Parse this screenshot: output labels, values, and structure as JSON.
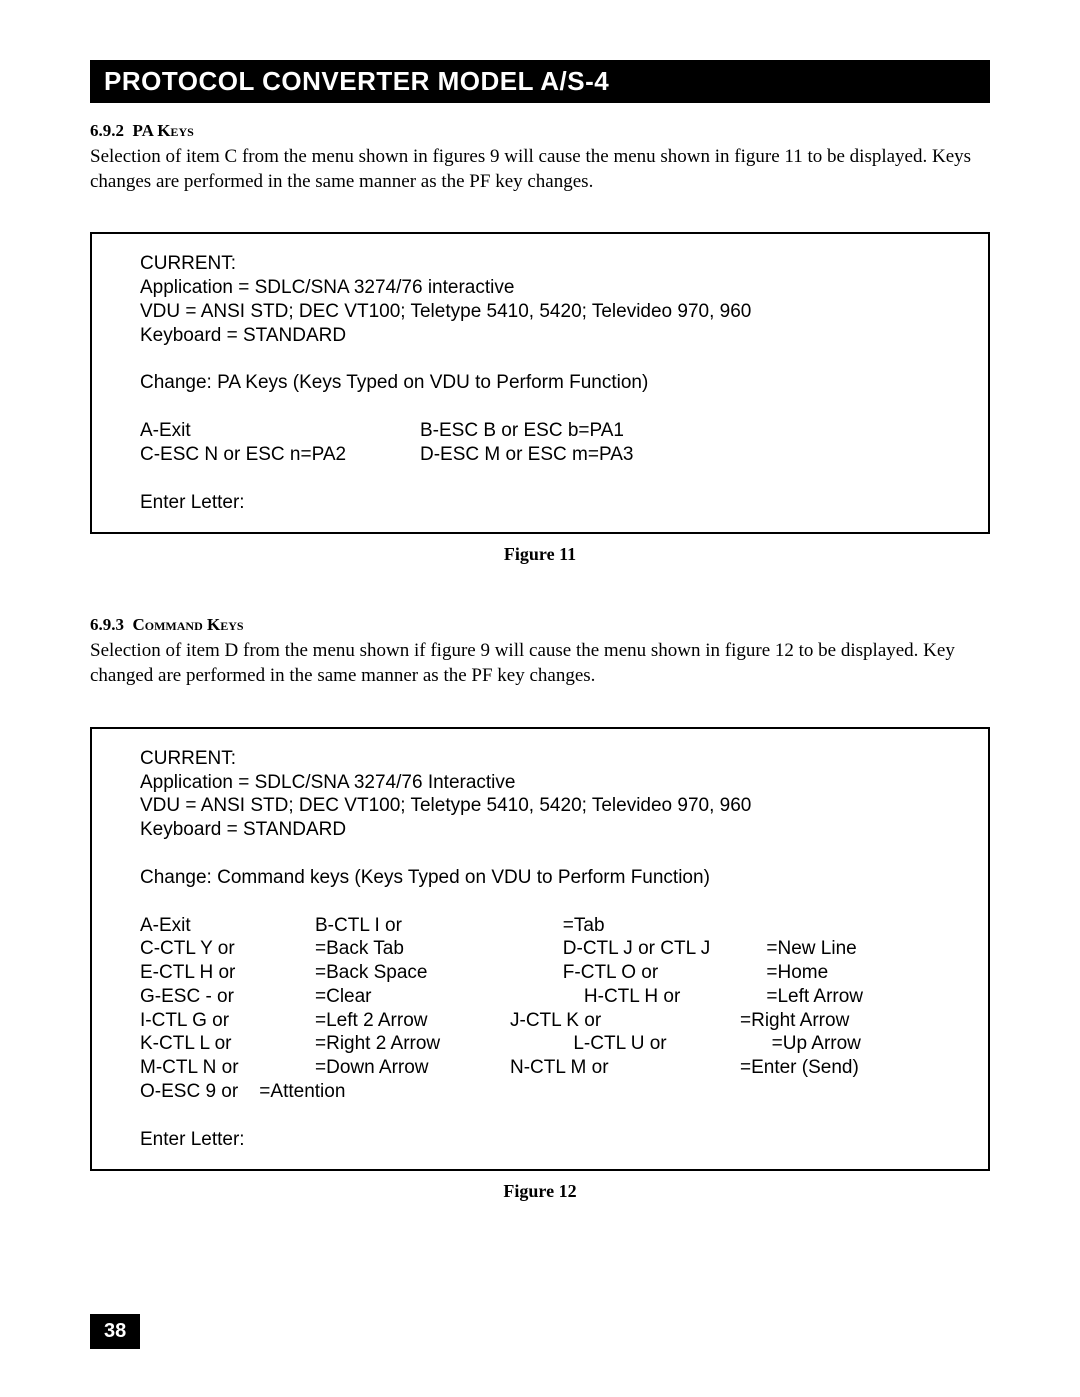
{
  "title_bar": "PROTOCOL CONVERTER MODEL A/S-4",
  "page_number": "38",
  "sec1": {
    "num": "6.9.2",
    "name": "PA Keys",
    "body": "Selection of item C from the menu shown in figures 9 will cause the menu shown in figure 11 to be displayed.  Keys changes are performed in the same manner as the PF key changes."
  },
  "fig11": {
    "caption": "Figure 11",
    "l1": "CURRENT:",
    "l2": "Application = SDLC/SNA 3274/76 interactive",
    "l3": "VDU = ANSI STD; DEC VT100; Teletype 5410, 5420; Televideo 970, 960",
    "l4": "Keyboard = STANDARD",
    "l5": "Change:  PA Keys (Keys Typed on VDU to Perform Function)",
    "r1c1": "A-Exit",
    "r1c2": "B-ESC B or ESC b=PA1",
    "r2c1": "C-ESC N or ESC n=PA2",
    "r2c2": "D-ESC M or ESC m=PA3",
    "l_enter": "Enter Letter:"
  },
  "sec2": {
    "num": "6.9.3",
    "name": "Command Keys",
    "body": "Selection of item D from the menu shown if figure 9 will cause the menu shown in figure 12 to be displayed.  Key changed are performed in the same manner as the PF key changes."
  },
  "fig12": {
    "caption": "Figure 12",
    "l1": "CURRENT:",
    "l2": "Application = SDLC/SNA 3274/76 Interactive",
    "l3": "VDU = ANSI STD; DEC VT100; Teletype 5410, 5420; Televideo 970, 960",
    "l4": "Keyboard = STANDARD",
    "l5": "Change:  Command keys (Keys Typed on VDU to Perform Function)",
    "rows": [
      {
        "a": "A-Exit",
        "b": "B-CTL I or",
        "c": "          =Tab",
        "d": ""
      },
      {
        "a": "C-CTL Y or",
        "b": "=Back Tab",
        "c": "          D-CTL J or CTL J",
        "d": "     =New Line"
      },
      {
        "a": "E-CTL H or",
        "b": "=Back Space",
        "c": "          F-CTL O or",
        "d": "     =Home"
      },
      {
        "a": "G-ESC - or",
        "b": "=Clear",
        "c": "              H-CTL H or",
        "d": "     =Left Arrow"
      },
      {
        "a": "I-CTL G or",
        "b": "=Left 2 Arrow",
        "c": "J-CTL K or",
        "d": "=Right Arrow"
      },
      {
        "a": "K-CTL L or",
        "b": "=Right 2 Arrow",
        "c": "            L-CTL U or",
        "d": "      =Up Arrow"
      },
      {
        "a": "M-CTL N or",
        "b": "=Down Arrow",
        "c": "N-CTL M or",
        "d": "=Enter (Send)"
      }
    ],
    "last_a": "O-ESC 9 or    =Attention",
    "l_enter": "Enter Letter:"
  }
}
